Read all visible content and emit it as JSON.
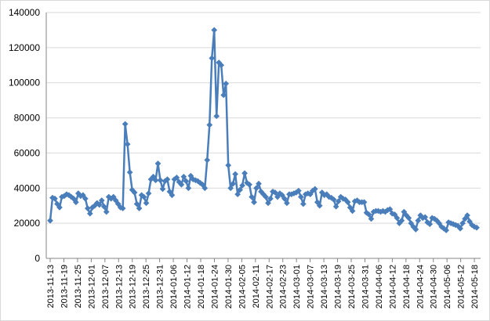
{
  "chart_data": {
    "type": "line",
    "title": "",
    "xlabel": "",
    "ylabel": "",
    "ylim": [
      0,
      140000
    ],
    "yticks": [
      0,
      20000,
      40000,
      60000,
      80000,
      100000,
      120000,
      140000
    ],
    "ytick_labels": [
      "0",
      "20000",
      "40000",
      "60000",
      "80000",
      "100000",
      "120000",
      "140000"
    ],
    "x_start": "2013-11-13",
    "x_end": "2014-05-19",
    "xtick_labels": [
      "2013-11-13",
      "2013-11-19",
      "2013-11-25",
      "2013-12-01",
      "2013-12-07",
      "2013-12-13",
      "2013-12-19",
      "2013-12-25",
      "2013-12-31",
      "2014-01-06",
      "2014-01-12",
      "2014-01-18",
      "2014-01-24",
      "2014-01-30",
      "2014-02-05",
      "2014-02-11",
      "2014-02-17",
      "2014-02-23",
      "2014-03-01",
      "2014-03-07",
      "2014-03-13",
      "2014-03-19",
      "2014-03-25",
      "2014-03-31",
      "2014-04-06",
      "2014-04-12",
      "2014-04-18",
      "2014-04-24",
      "2014-04-30",
      "2014-05-06",
      "2014-05-12",
      "2014-05-18"
    ],
    "grid": true,
    "legend": "none",
    "series_color": "#4a7ebb",
    "series": [
      {
        "values": [
          21500,
          34500,
          34000,
          31000,
          29000,
          35000,
          35500,
          36500,
          36000,
          35000,
          34000,
          32000,
          37000,
          35500,
          36000,
          34000,
          28500,
          25500,
          29000,
          30000,
          31500,
          30500,
          33000,
          29500,
          26500,
          35000,
          34000,
          35000,
          33000,
          31000,
          29000,
          28500,
          76500,
          65000,
          49000,
          39000,
          37500,
          31000,
          28500,
          36000,
          35000,
          31500,
          37000,
          45000,
          46500,
          44500,
          54000,
          44500,
          39500,
          44000,
          45000,
          38000,
          36000,
          45000,
          46000,
          43500,
          42000,
          46500,
          44000,
          40000,
          47000,
          45000,
          44500,
          44000,
          43000,
          42000,
          40000,
          56000,
          76000,
          114000,
          130000,
          81000,
          111500,
          110000,
          93000,
          99500,
          53000,
          40000,
          42500,
          48000,
          36500,
          39000,
          41500,
          48500,
          43000,
          42000,
          35000,
          32000,
          40000,
          42500,
          38000,
          36500,
          35000,
          31500,
          34000,
          38000,
          37500,
          35000,
          37000,
          36000,
          34000,
          31500,
          36500,
          36500,
          37000,
          37500,
          38500,
          35000,
          31000,
          36500,
          37000,
          36500,
          38500,
          39500,
          32000,
          30000,
          37500,
          36000,
          36500,
          35000,
          34500,
          33500,
          29500,
          32500,
          35000,
          34000,
          33500,
          32000,
          29000,
          27000,
          32500,
          33000,
          32000,
          32000,
          32000,
          26000,
          25000,
          22500,
          26500,
          27000,
          27000,
          26500,
          27000,
          26500,
          27500,
          28000,
          25500,
          25000,
          23000,
          20000,
          21500,
          26500,
          24500,
          23000,
          20000,
          18000,
          16500,
          21500,
          24500,
          23000,
          23500,
          20500,
          19500,
          23000,
          22500,
          21500,
          20000,
          18000,
          17000,
          16000,
          20500,
          20000,
          19500,
          19000,
          18500,
          17000,
          20000,
          22500,
          24500,
          21000,
          19000,
          18000,
          17500
        ]
      }
    ]
  }
}
